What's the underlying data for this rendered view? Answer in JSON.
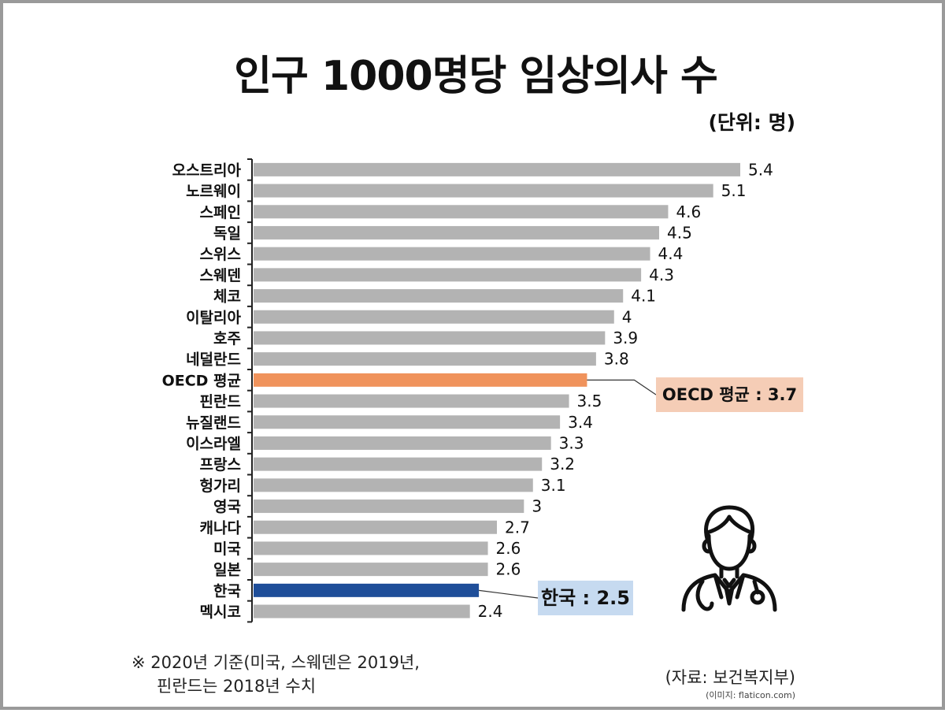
{
  "title": "인구 1000명당 임상의사 수",
  "unit": "(단위: 명)",
  "chart_data": {
    "type": "bar",
    "orientation": "horizontal",
    "title": "인구 1000명당 임상의사 수",
    "categories": [
      "오스트리아",
      "노르웨이",
      "스페인",
      "독일",
      "스위스",
      "스웨덴",
      "체코",
      "이탈리아",
      "호주",
      "네덜란드",
      "OECD 평균",
      "핀란드",
      "뉴질랜드",
      "이스라엘",
      "프랑스",
      "헝가리",
      "영국",
      "캐나다",
      "미국",
      "일본",
      "한국",
      "멕시코"
    ],
    "values": [
      5.4,
      5.1,
      4.6,
      4.5,
      4.4,
      4.3,
      4.1,
      4,
      3.9,
      3.8,
      3.7,
      3.5,
      3.4,
      3.3,
      3.2,
      3.1,
      3,
      2.7,
      2.6,
      2.6,
      2.5,
      2.4
    ],
    "value_labels": [
      "5.4",
      "5.1",
      "4.6",
      "4.5",
      "4.4",
      "4.3",
      "4.1",
      "4",
      "3.9",
      "3.8",
      "",
      "3.5",
      "3.4",
      "3.3",
      "3.2",
      "3.1",
      "3",
      "2.7",
      "2.6",
      "2.6",
      "",
      "2.4"
    ],
    "highlights": {
      "OECD 평균": "#f0935c",
      "한국": "#1f4e99"
    },
    "bar_color": "#b3b3b3",
    "xlim": [
      0,
      5.4
    ],
    "grid": false
  },
  "callouts": {
    "oecd": "OECD 평균 : 3.7",
    "korea": "한국 : 2.5"
  },
  "footnote": {
    "line1": "※ 2020년 기준(미국, 스웨덴은 2019년,",
    "line2": "핀란드는 2018년 수치"
  },
  "source": "(자료: 보건복지부)",
  "credit": "(이미지: flaticon.com)",
  "icon": "doctor-icon"
}
